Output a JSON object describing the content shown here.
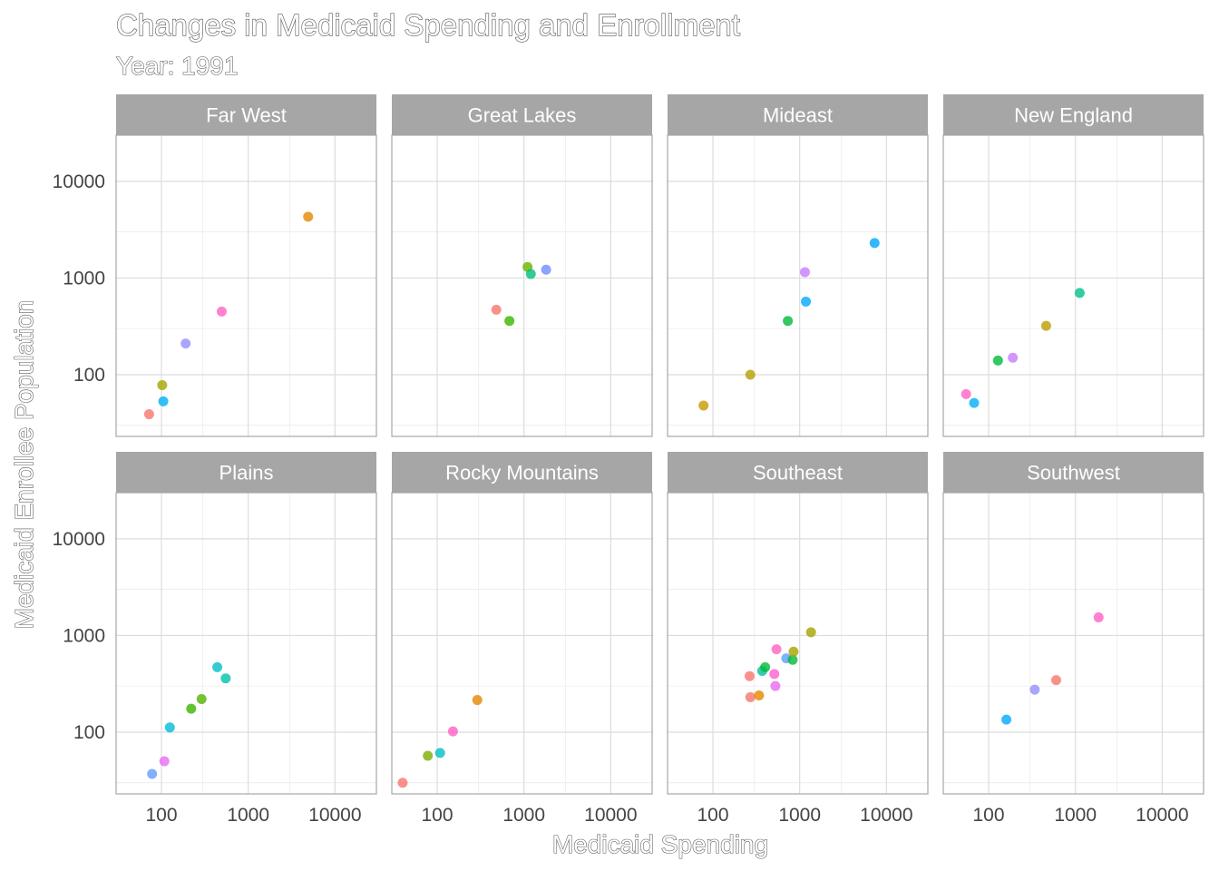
{
  "chart_data": {
    "type": "scatter",
    "title": "Changes in Medicaid Spending and Enrollment",
    "subtitle": "Year: 1991",
    "xlabel": "Medicaid Spending",
    "ylabel": "Medicaid Enrollee Population",
    "x_scale": "log10",
    "y_scale": "log10",
    "xlim": [
      30,
      30000
    ],
    "ylim": [
      23,
      30000
    ],
    "x_ticks": [
      {
        "value": 100,
        "label": "100"
      },
      {
        "value": 1000,
        "label": "1000"
      },
      {
        "value": 10000,
        "label": "10000"
      }
    ],
    "y_ticks": [
      {
        "value": 100,
        "label": "100"
      },
      {
        "value": 1000,
        "label": "1000"
      },
      {
        "value": 10000,
        "label": "10000"
      }
    ],
    "grid": true,
    "legend": "none",
    "panels": [
      {
        "name": "Far West",
        "points": [
          {
            "x": 72,
            "y": 39,
            "color": "#F8766D"
          },
          {
            "x": 102,
            "y": 78,
            "color": "#A3A500"
          },
          {
            "x": 105,
            "y": 53,
            "color": "#00B0F6"
          },
          {
            "x": 190,
            "y": 210,
            "color": "#9590FF"
          },
          {
            "x": 495,
            "y": 450,
            "color": "#FF61C3"
          },
          {
            "x": 4900,
            "y": 4300,
            "color": "#E58700"
          }
        ]
      },
      {
        "name": "Great Lakes",
        "points": [
          {
            "x": 480,
            "y": 470,
            "color": "#F8766D"
          },
          {
            "x": 680,
            "y": 360,
            "color": "#39B600"
          },
          {
            "x": 1100,
            "y": 1300,
            "color": "#6BB100"
          },
          {
            "x": 1200,
            "y": 1100,
            "color": "#00BF7D"
          },
          {
            "x": 1800,
            "y": 1220,
            "color": "#6F8CFF"
          }
        ]
      },
      {
        "name": "Mideast",
        "points": [
          {
            "x": 78,
            "y": 48,
            "color": "#C99800"
          },
          {
            "x": 270,
            "y": 100,
            "color": "#B79F00"
          },
          {
            "x": 730,
            "y": 360,
            "color": "#00BA38"
          },
          {
            "x": 1150,
            "y": 1150,
            "color": "#C77CFF"
          },
          {
            "x": 1180,
            "y": 570,
            "color": "#00A9FF"
          },
          {
            "x": 7300,
            "y": 2300,
            "color": "#00A5FF"
          }
        ]
      },
      {
        "name": "New England",
        "points": [
          {
            "x": 55,
            "y": 63,
            "color": "#FF61C3"
          },
          {
            "x": 68,
            "y": 51,
            "color": "#00B0F6"
          },
          {
            "x": 128,
            "y": 140,
            "color": "#00BA38"
          },
          {
            "x": 190,
            "y": 150,
            "color": "#C77CFF"
          },
          {
            "x": 460,
            "y": 320,
            "color": "#BB9D00"
          },
          {
            "x": 1120,
            "y": 700,
            "color": "#00C08B"
          }
        ]
      },
      {
        "name": "Plains",
        "points": [
          {
            "x": 78,
            "y": 37,
            "color": "#619CFF"
          },
          {
            "x": 108,
            "y": 50,
            "color": "#E76BF3"
          },
          {
            "x": 125,
            "y": 112,
            "color": "#00BCD8"
          },
          {
            "x": 220,
            "y": 175,
            "color": "#39B600"
          },
          {
            "x": 290,
            "y": 220,
            "color": "#53B400"
          },
          {
            "x": 440,
            "y": 470,
            "color": "#00BFC4"
          },
          {
            "x": 550,
            "y": 360,
            "color": "#00C1AA"
          }
        ]
      },
      {
        "name": "Rocky Mountains",
        "points": [
          {
            "x": 40,
            "y": 30,
            "color": "#F8766D"
          },
          {
            "x": 78,
            "y": 57,
            "color": "#7CAE00"
          },
          {
            "x": 108,
            "y": 61,
            "color": "#00BFC4"
          },
          {
            "x": 152,
            "y": 102,
            "color": "#FF61C3"
          },
          {
            "x": 290,
            "y": 215,
            "color": "#E58700"
          }
        ]
      },
      {
        "name": "Southeast",
        "points": [
          {
            "x": 265,
            "y": 380,
            "color": "#F8766D"
          },
          {
            "x": 270,
            "y": 230,
            "color": "#F8766D"
          },
          {
            "x": 340,
            "y": 240,
            "color": "#E58700"
          },
          {
            "x": 370,
            "y": 430,
            "color": "#00C19A"
          },
          {
            "x": 400,
            "y": 470,
            "color": "#00BA38"
          },
          {
            "x": 510,
            "y": 400,
            "color": "#FD61D1"
          },
          {
            "x": 525,
            "y": 300,
            "color": "#E76BF3"
          },
          {
            "x": 540,
            "y": 720,
            "color": "#FF61C3"
          },
          {
            "x": 700,
            "y": 580,
            "color": "#619CFF"
          },
          {
            "x": 830,
            "y": 560,
            "color": "#00BA38"
          },
          {
            "x": 850,
            "y": 680,
            "color": "#A3A500"
          },
          {
            "x": 1350,
            "y": 1080,
            "color": "#A3A500"
          }
        ]
      },
      {
        "name": "Southwest",
        "points": [
          {
            "x": 160,
            "y": 135,
            "color": "#00A9FF"
          },
          {
            "x": 340,
            "y": 275,
            "color": "#9590FF"
          },
          {
            "x": 600,
            "y": 345,
            "color": "#F8766D"
          },
          {
            "x": 1850,
            "y": 1540,
            "color": "#FF61C3"
          }
        ]
      }
    ]
  }
}
